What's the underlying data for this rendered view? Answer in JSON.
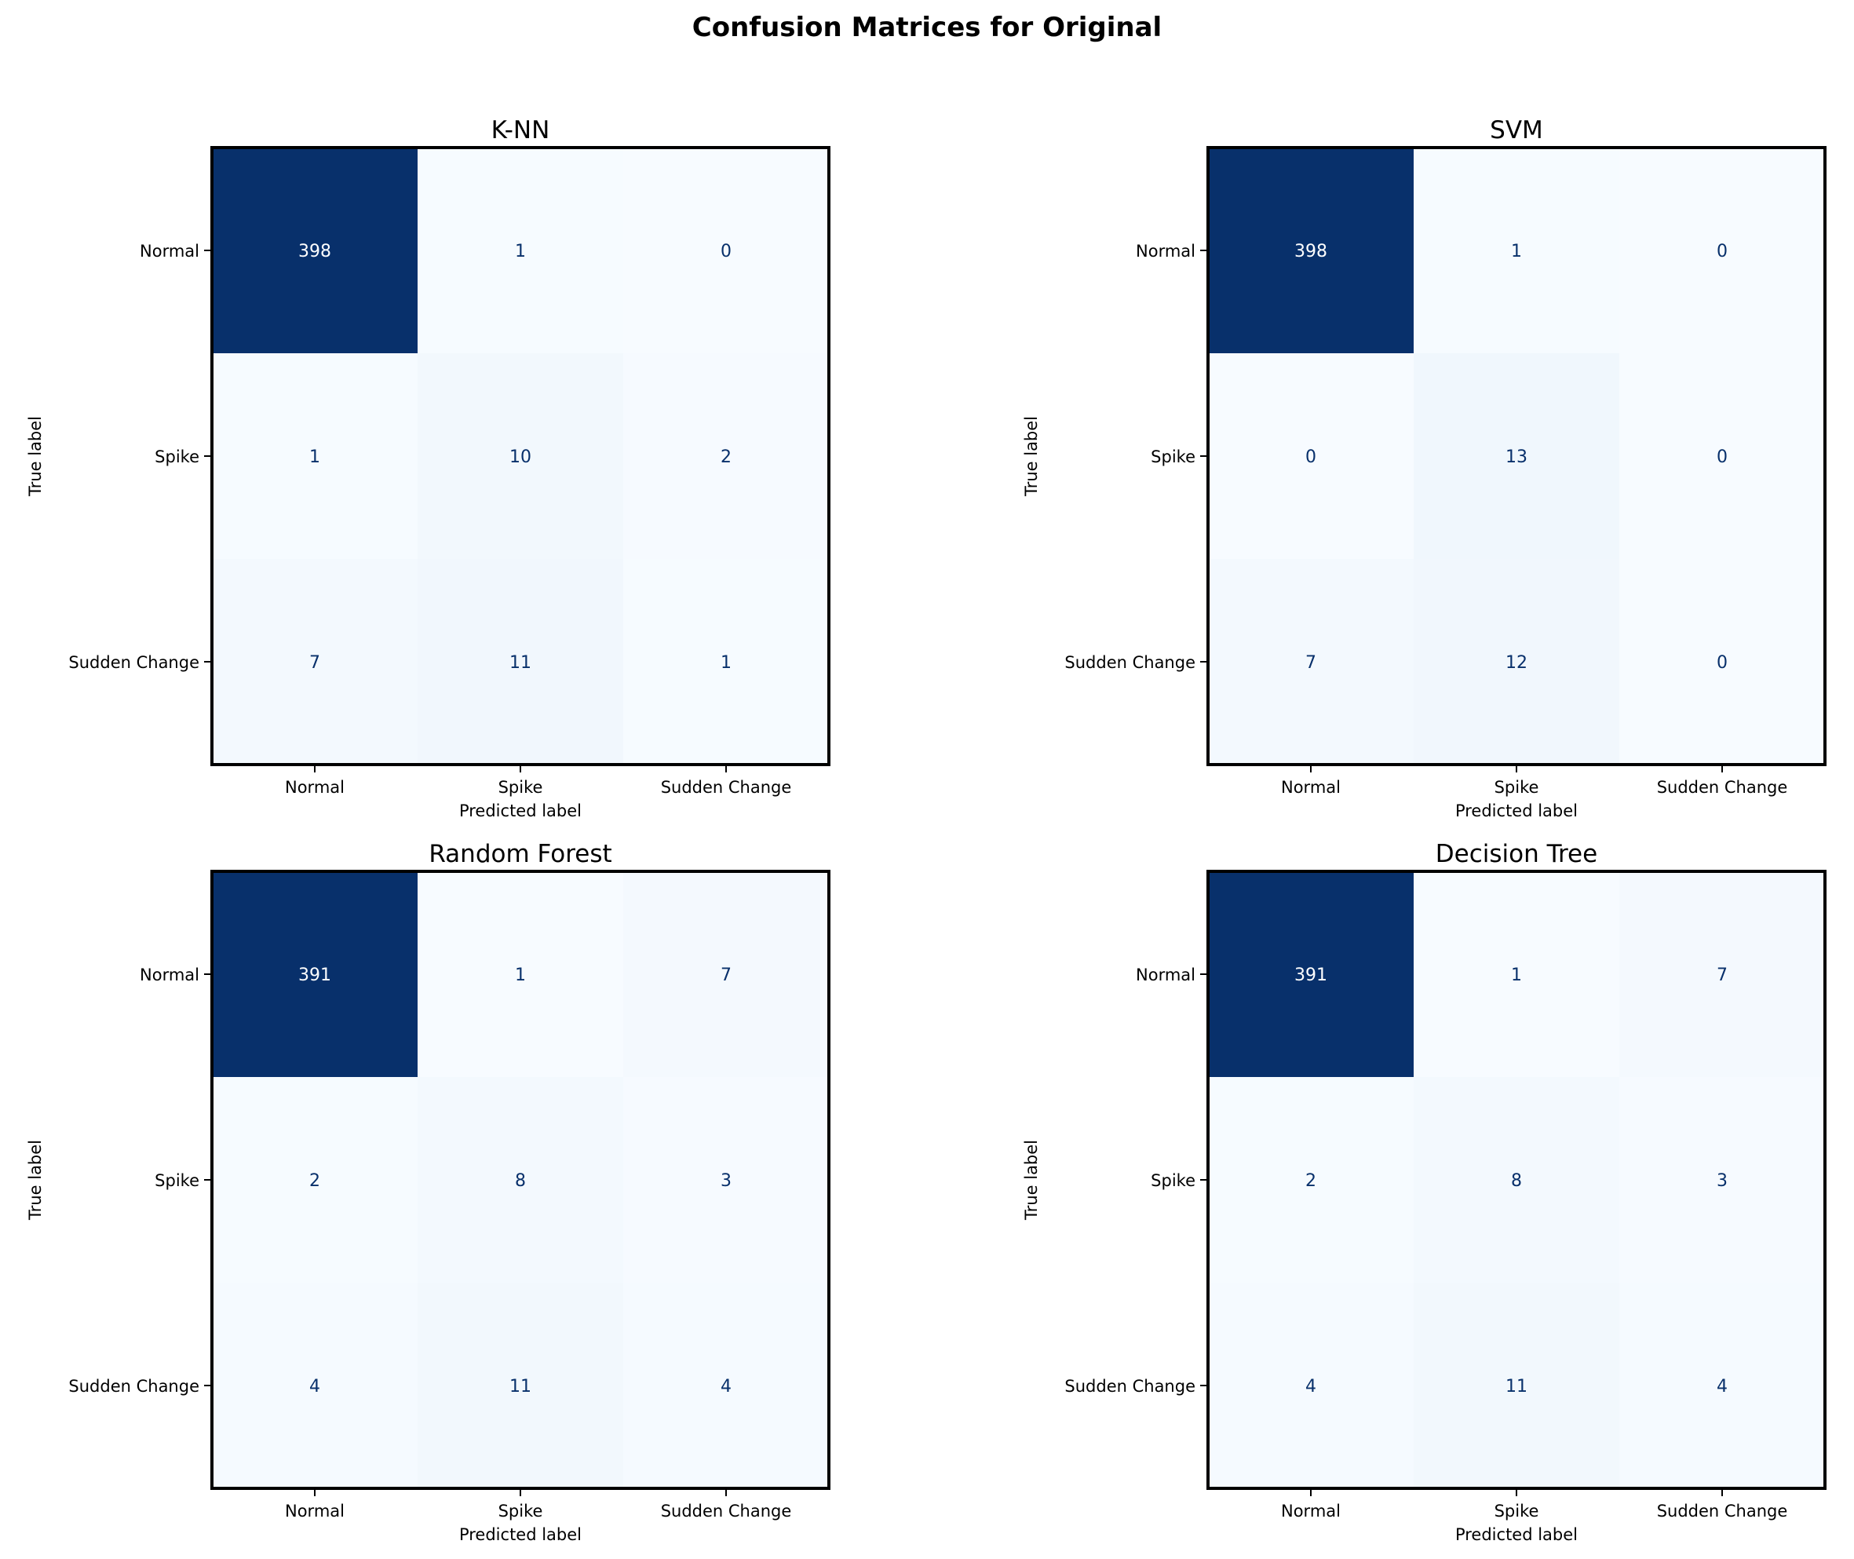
{
  "title": "Confusion Matrices for Original",
  "chart_data": [
    {
      "type": "heatmap",
      "title": "K-NN",
      "xlabel": "Predicted label",
      "ylabel": "True label",
      "x_categories": [
        "Normal",
        "Spike",
        "Sudden Change"
      ],
      "y_categories": [
        "Normal",
        "Spike",
        "Sudden Change"
      ],
      "values": [
        [
          398,
          1,
          0
        ],
        [
          1,
          10,
          2
        ],
        [
          7,
          11,
          1
        ]
      ],
      "colormap": "Blues"
    },
    {
      "type": "heatmap",
      "title": "SVM",
      "xlabel": "Predicted label",
      "ylabel": "True label",
      "x_categories": [
        "Normal",
        "Spike",
        "Sudden Change"
      ],
      "y_categories": [
        "Normal",
        "Spike",
        "Sudden Change"
      ],
      "values": [
        [
          398,
          1,
          0
        ],
        [
          0,
          13,
          0
        ],
        [
          7,
          12,
          0
        ]
      ],
      "colormap": "Blues"
    },
    {
      "type": "heatmap",
      "title": "Random Forest",
      "xlabel": "Predicted label",
      "ylabel": "True label",
      "x_categories": [
        "Normal",
        "Spike",
        "Sudden Change"
      ],
      "y_categories": [
        "Normal",
        "Spike",
        "Sudden Change"
      ],
      "values": [
        [
          391,
          1,
          7
        ],
        [
          2,
          8,
          3
        ],
        [
          4,
          11,
          4
        ]
      ],
      "colormap": "Blues"
    },
    {
      "type": "heatmap",
      "title": "Decision Tree",
      "xlabel": "Predicted label",
      "ylabel": "True label",
      "x_categories": [
        "Normal",
        "Spike",
        "Sudden Change"
      ],
      "y_categories": [
        "Normal",
        "Spike",
        "Sudden Change"
      ],
      "values": [
        [
          391,
          1,
          7
        ],
        [
          2,
          8,
          3
        ],
        [
          4,
          11,
          4
        ]
      ],
      "colormap": "Blues"
    }
  ]
}
